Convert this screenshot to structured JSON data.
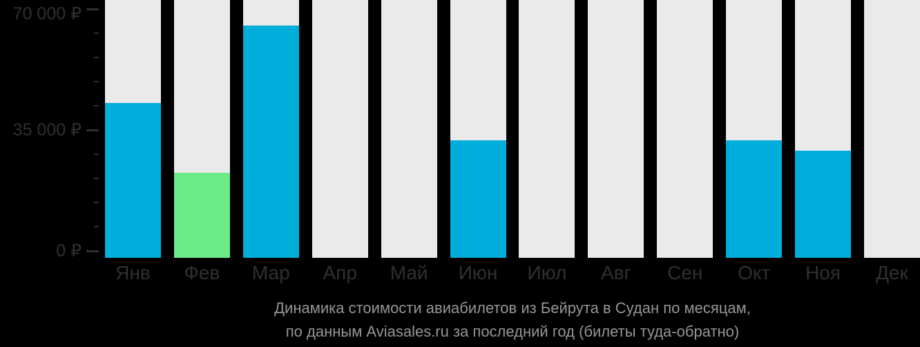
{
  "colors": {
    "background": "#000000",
    "bar_default": "#00AEDC",
    "bar_lowest_price": "#6BEB87",
    "bar_track": "#EAEAEA",
    "axis_text": "#303030",
    "title_text": "#969696"
  },
  "chart_data": {
    "type": "bar",
    "title": "Динамика стоимости авиабилетов из Бейрута в Судан по месяцам, по данным Aviasales.ru за последний год (билеты туда-обратно)",
    "title_lines": [
      "Динамика стоимости авиабилетов из Бейрута в Судан по месяцам,",
      "по данным Aviasales.ru за последний год (билеты туда-обратно)"
    ],
    "categories": [
      "Янв",
      "Фев",
      "Мар",
      "Апр",
      "Май",
      "Июн",
      "Июл",
      "Авг",
      "Сен",
      "Окт",
      "Ноя",
      "Дек"
    ],
    "values": [
      42700,
      22600,
      65200,
      null,
      null,
      32000,
      null,
      null,
      null,
      32000,
      29000,
      null
    ],
    "bar_colors": [
      "#00AEDC",
      "#6BEB87",
      "#00AEDC",
      null,
      null,
      "#00AEDC",
      null,
      null,
      null,
      "#00AEDC",
      "#00AEDC",
      null
    ],
    "xlabel": "",
    "ylabel": "",
    "ylim": [
      0,
      70000
    ],
    "grid": false,
    "legend": false,
    "y_axis": {
      "currency": "₽",
      "minor_tick_step": 7000,
      "major_ticks": [
        {
          "value": 0,
          "label": "0 ₽"
        },
        {
          "value": 35000,
          "label": "35 000 ₽"
        },
        {
          "value": 70000,
          "label": "70 000 ₽"
        }
      ]
    }
  }
}
